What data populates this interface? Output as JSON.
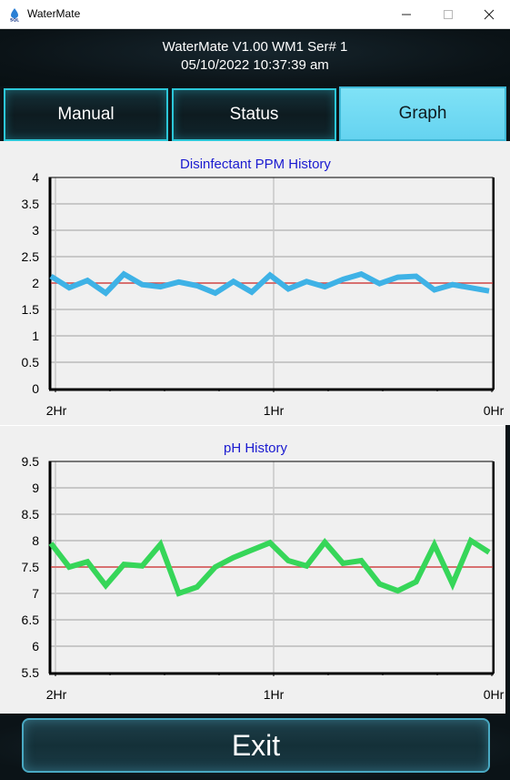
{
  "window": {
    "title": "WaterMate",
    "icon": "sql-water-drop-icon"
  },
  "header": {
    "line1": "WaterMate V1.00  WM1 Ser# 1",
    "line2": "05/10/2022 10:37:39 am"
  },
  "tabs": [
    {
      "label": "Manual",
      "selected": false
    },
    {
      "label": "Status",
      "selected": false
    },
    {
      "label": "Graph",
      "selected": true
    }
  ],
  "footer": {
    "exit_label": "Exit"
  },
  "chart_data": [
    {
      "type": "line",
      "title": "Disinfectant PPM History",
      "x_tick_labels": [
        "2Hr",
        "1Hr",
        "0Hr"
      ],
      "ylim": [
        0,
        4
      ],
      "yticks": [
        "0",
        "0.5",
        "1",
        "1.5",
        "2",
        "2.5",
        "3",
        "3.5",
        "4"
      ],
      "reference_line": 2,
      "series_color": "#3eb2e6",
      "reference_color": "#e03b3b",
      "grid": true,
      "values": [
        2.13,
        1.91,
        2.05,
        1.81,
        2.17,
        1.97,
        1.93,
        2.02,
        1.95,
        1.81,
        2.03,
        1.83,
        2.15,
        1.89,
        2.03,
        1.93,
        2.07,
        2.17,
        1.99,
        2.11,
        2.13,
        1.87,
        1.97,
        1.91,
        1.85
      ]
    },
    {
      "type": "line",
      "title": "pH History",
      "x_tick_labels": [
        "2Hr",
        "1Hr",
        "0Hr"
      ],
      "ylim": [
        5.5,
        9.5
      ],
      "yticks": [
        "5.5",
        "6",
        "6.5",
        "7",
        "7.5",
        "8",
        "8.5",
        "9",
        "9.5"
      ],
      "reference_line": 7.5,
      "series_color": "#36d659",
      "reference_color": "#e03b3b",
      "grid": true,
      "values": [
        7.95,
        7.5,
        7.6,
        7.15,
        7.55,
        7.52,
        7.93,
        7.0,
        7.12,
        7.5,
        7.68,
        7.82,
        7.96,
        7.62,
        7.52,
        7.97,
        7.57,
        7.62,
        7.18,
        7.05,
        7.22,
        7.92,
        7.18,
        8.0,
        7.78
      ]
    }
  ]
}
